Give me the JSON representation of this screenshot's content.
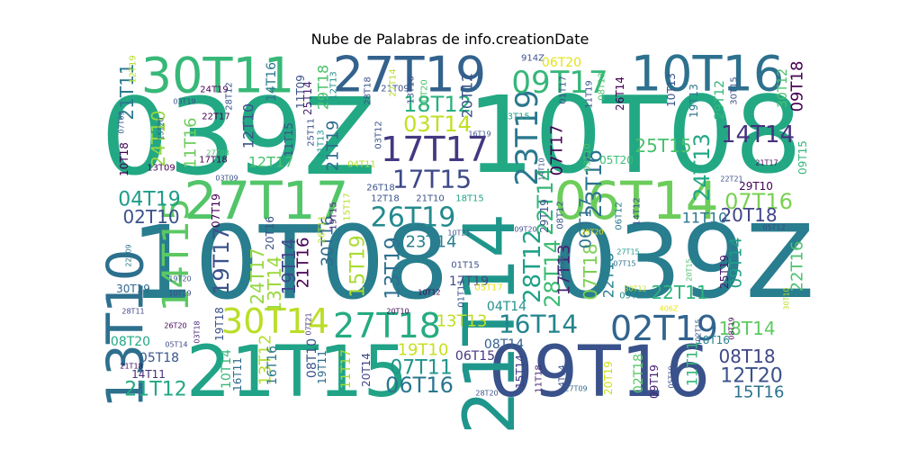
{
  "chart_data": {
    "type": "wordcloud",
    "title": "Nube de Palabras de info.creationDate",
    "words": [
      {
        "text": "039Z",
        "weight": 100,
        "color": "#23a884"
      },
      {
        "text": "10T08",
        "weight": 100,
        "color": "#23a884"
      },
      {
        "text": "10T08",
        "weight": 96,
        "color": "#287d8e"
      },
      {
        "text": "039Z",
        "weight": 96,
        "color": "#287d8e"
      },
      {
        "text": "21T15",
        "weight": 62,
        "color": "#20a386"
      },
      {
        "text": "09T16",
        "weight": 62,
        "color": "#3a528b"
      },
      {
        "text": "21T14",
        "weight": 58,
        "color": "#1f968b"
      },
      {
        "text": "13T10",
        "weight": 44,
        "color": "#2d708e"
      },
      {
        "text": "27T17",
        "weight": 44,
        "color": "#52c569"
      },
      {
        "text": "06T14",
        "weight": 44,
        "color": "#6ccd5a"
      },
      {
        "text": "30T11",
        "weight": 40,
        "color": "#37b878"
      },
      {
        "text": "27T19",
        "weight": 40,
        "color": "#33628d"
      },
      {
        "text": "10T16",
        "weight": 40,
        "color": "#2d718e"
      },
      {
        "text": "27T18",
        "weight": 30,
        "color": "#25ab82"
      },
      {
        "text": "30T14",
        "weight": 30,
        "color": "#bade28"
      },
      {
        "text": "02T19",
        "weight": 30,
        "color": "#32648e"
      },
      {
        "text": "16T14",
        "weight": 26,
        "color": "#25848e"
      },
      {
        "text": "17T17",
        "weight": 28,
        "color": "#453781"
      },
      {
        "text": "14T15",
        "weight": 28,
        "color": "#5cc863"
      },
      {
        "text": "23T19",
        "weight": 24,
        "color": "#2a788e"
      },
      {
        "text": "26T19",
        "weight": 24,
        "color": "#238a8d"
      },
      {
        "text": "17T15",
        "weight": 22,
        "color": "#3e4989"
      },
      {
        "text": "09T17",
        "weight": 24,
        "color": "#35b779"
      },
      {
        "text": "03T14",
        "weight": 20,
        "color": "#c2df23"
      },
      {
        "text": "18T12",
        "weight": 20,
        "color": "#2ab07f"
      },
      {
        "text": "22T14",
        "weight": 20,
        "color": "#35b779"
      },
      {
        "text": "23T16",
        "weight": 20,
        "color": "#2c728e"
      },
      {
        "text": "24T13",
        "weight": 18,
        "color": "#22a785"
      },
      {
        "text": "14T14",
        "weight": 18,
        "color": "#46327e"
      },
      {
        "text": "07T16",
        "weight": 18,
        "color": "#7ad151"
      },
      {
        "text": "20T18",
        "weight": 16,
        "color": "#414487"
      },
      {
        "text": "04T19",
        "weight": 18,
        "color": "#1e9c89"
      },
      {
        "text": "02T10",
        "weight": 18,
        "color": "#3b528b"
      },
      {
        "text": "21T12",
        "weight": 18,
        "color": "#22a884"
      },
      {
        "text": "06T16",
        "weight": 18,
        "color": "#2a768e"
      },
      {
        "text": "07T11",
        "weight": 18,
        "color": "#1f958b"
      },
      {
        "text": "19T10",
        "weight": 16,
        "color": "#c8e020"
      },
      {
        "text": "23T14",
        "weight": 16,
        "color": "#27808e"
      },
      {
        "text": "13T19",
        "weight": 18,
        "color": "#2d708e"
      },
      {
        "text": "15T19",
        "weight": 18,
        "color": "#aadc32"
      },
      {
        "text": "19T17",
        "weight": 18,
        "color": "#3b528b"
      },
      {
        "text": "21T16",
        "weight": 14,
        "color": "#440154"
      },
      {
        "text": "19T14",
        "weight": 14,
        "color": "#3e4a89"
      },
      {
        "text": "24T17",
        "weight": 14,
        "color": "#95d840"
      },
      {
        "text": "13T14",
        "weight": 16,
        "color": "#9bd93c"
      },
      {
        "text": "30T16",
        "weight": 14,
        "color": "#31688e"
      },
      {
        "text": "21T19",
        "weight": 14,
        "color": "#2e6d8e"
      },
      {
        "text": "28T12",
        "weight": 18,
        "color": "#1fa187"
      },
      {
        "text": "28T14",
        "weight": 18,
        "color": "#3cbc74"
      },
      {
        "text": "17T13",
        "weight": 16,
        "color": "#481f70"
      },
      {
        "text": "07T18",
        "weight": 16,
        "color": "#7ad151"
      },
      {
        "text": "22T18",
        "weight": 14,
        "color": "#277f8e"
      },
      {
        "text": "22T11",
        "weight": 16,
        "color": "#2fb47c"
      },
      {
        "text": "09T14",
        "weight": 16,
        "color": "#1f9e89"
      },
      {
        "text": "18T14",
        "weight": 16,
        "color": "#5ec962"
      },
      {
        "text": "08T18",
        "weight": 16,
        "color": "#3f4788"
      },
      {
        "text": "12T20",
        "weight": 16,
        "color": "#3b528b"
      },
      {
        "text": "15T16",
        "weight": 14,
        "color": "#2c738e"
      },
      {
        "text": "22T16",
        "weight": 14,
        "color": "#4ac16d"
      },
      {
        "text": "13T13",
        "weight": 14,
        "color": "#bddf26"
      },
      {
        "text": "08T14",
        "weight": 12,
        "color": "#34608d"
      },
      {
        "text": "06T15",
        "weight": 12,
        "color": "#453581"
      },
      {
        "text": "04T14",
        "weight": 12,
        "color": "#21908d"
      },
      {
        "text": "05T18",
        "weight": 12,
        "color": "#3a548c"
      },
      {
        "text": "14T11",
        "weight": 10,
        "color": "#472d7b"
      },
      {
        "text": "21T18",
        "weight": 8,
        "color": "#440154"
      },
      {
        "text": "30T19",
        "weight": 10,
        "color": "#31688e"
      },
      {
        "text": "19T20",
        "weight": 8,
        "color": "#39568c"
      },
      {
        "text": "10T19",
        "weight": 8,
        "color": "#3e4989"
      },
      {
        "text": "28T11",
        "weight": 8,
        "color": "#414487"
      },
      {
        "text": "22T09",
        "weight": 8,
        "color": "#2a788e"
      },
      {
        "text": "08T20",
        "weight": 12,
        "color": "#22a884"
      },
      {
        "text": "26T20",
        "weight": 8,
        "color": "#440154"
      },
      {
        "text": "05T14",
        "weight": 8,
        "color": "#3e4a89"
      },
      {
        "text": "03T18",
        "weight": 8,
        "color": "#482576"
      },
      {
        "text": "19T18",
        "weight": 10,
        "color": "#3b528b"
      },
      {
        "text": "10T14",
        "weight": 12,
        "color": "#35b779"
      },
      {
        "text": "16T11",
        "weight": 10,
        "color": "#2f6c8e"
      },
      {
        "text": "13T12",
        "weight": 14,
        "color": "#b5de2b"
      },
      {
        "text": "16T16",
        "weight": 12,
        "color": "#2a788e"
      },
      {
        "text": "08T10",
        "weight": 12,
        "color": "#3a548c"
      },
      {
        "text": "19T11",
        "weight": 10,
        "color": "#2f6c8e"
      },
      {
        "text": "11T17",
        "weight": 12,
        "color": "#a8db34"
      },
      {
        "text": "20T14",
        "weight": 10,
        "color": "#3f4788"
      },
      {
        "text": "20T10",
        "weight": 8,
        "color": "#440154"
      },
      {
        "text": "07T21",
        "weight": 8,
        "color": "#46327e"
      },
      {
        "text": "15T14",
        "weight": 10,
        "color": "#433e85"
      },
      {
        "text": "28T20",
        "weight": 8,
        "color": "#3b528b"
      },
      {
        "text": "11T18",
        "weight": 8,
        "color": "#482878"
      },
      {
        "text": "24T14",
        "weight": 8,
        "color": "#3b528b"
      },
      {
        "text": "27T09",
        "weight": 8,
        "color": "#31688e"
      },
      {
        "text": "20T19",
        "weight": 12,
        "color": "#d0e11c"
      },
      {
        "text": "02T18",
        "weight": 12,
        "color": "#56c667"
      },
      {
        "text": "09T19",
        "weight": 10,
        "color": "#482173"
      },
      {
        "text": "05T19",
        "weight": 8,
        "color": "#3b528b"
      },
      {
        "text": "11T11",
        "weight": 14,
        "color": "#35b779"
      },
      {
        "text": "18T16",
        "weight": 10,
        "color": "#26828e"
      },
      {
        "text": "25T19",
        "weight": 10,
        "color": "#481a6c"
      },
      {
        "text": "20T15",
        "weight": 8,
        "color": "#4ac16d"
      },
      {
        "text": "30T10",
        "weight": 8,
        "color": "#b8de29"
      },
      {
        "text": "406Z",
        "weight": 7,
        "color": "#e7e419"
      },
      {
        "text": "02T15",
        "weight": 8,
        "color": "#3b528b"
      },
      {
        "text": "08T19",
        "weight": 8,
        "color": "#440154"
      },
      {
        "text": "30T12",
        "weight": 8,
        "color": "#c2df23"
      },
      {
        "text": "09T12",
        "weight": 8,
        "color": "#238a8d"
      },
      {
        "text": "07T15",
        "weight": 8,
        "color": "#2d708e"
      },
      {
        "text": "07T19",
        "weight": 12,
        "color": "#440154"
      },
      {
        "text": "06T17",
        "weight": 14,
        "color": "#2c728e"
      },
      {
        "text": "11T10",
        "weight": 10,
        "color": "#2a788e"
      },
      {
        "text": "29T10",
        "weight": 10,
        "color": "#440154"
      },
      {
        "text": "22T21",
        "weight": 7,
        "color": "#3b528b"
      },
      {
        "text": "21T17",
        "weight": 7,
        "color": "#440154"
      },
      {
        "text": "09T15",
        "weight": 8,
        "color": "#35b779"
      },
      {
        "text": "14T12",
        "weight": 8,
        "color": "#3b528b"
      },
      {
        "text": "06T12",
        "weight": 8,
        "color": "#2a788e"
      },
      {
        "text": "05T12",
        "weight": 7,
        "color": "#3e4989"
      },
      {
        "text": "29T20",
        "weight": 7,
        "color": "#e2e418"
      },
      {
        "text": "27T15",
        "weight": 7,
        "color": "#1f968b"
      },
      {
        "text": "09T20",
        "weight": 7,
        "color": "#3b528b"
      },
      {
        "text": "03T20",
        "weight": 7,
        "color": "#3b528b"
      },
      {
        "text": "10T21",
        "weight": 7,
        "color": "#3b528b"
      },
      {
        "text": "01T15",
        "weight": 8,
        "color": "#3b528b"
      },
      {
        "text": "17T19",
        "weight": 10,
        "color": "#3e4989"
      },
      {
        "text": "05T17",
        "weight": 8,
        "color": "#e2e418"
      },
      {
        "text": "10T12",
        "weight": 7,
        "color": "#440154"
      },
      {
        "text": "01T11",
        "weight": 8,
        "color": "#3b528b"
      },
      {
        "text": "29T19",
        "weight": 10,
        "color": "#3b528b"
      },
      {
        "text": "08T12",
        "weight": 8,
        "color": "#3b528b"
      },
      {
        "text": "21T10",
        "weight": 8,
        "color": "#3b528b"
      },
      {
        "text": "18T15",
        "weight": 8,
        "color": "#20a386"
      },
      {
        "text": "26T18",
        "weight": 8,
        "color": "#3b528b"
      },
      {
        "text": "12T18",
        "weight": 8,
        "color": "#3b528b"
      },
      {
        "text": "15T17",
        "weight": 8,
        "color": "#b5de2b"
      },
      {
        "text": "19T15",
        "weight": 7,
        "color": "#482878"
      },
      {
        "text": "26T11",
        "weight": 7,
        "color": "#b5de2b"
      },
      {
        "text": "20T16",
        "weight": 10,
        "color": "#3b528b"
      },
      {
        "text": "12T17",
        "weight": 12,
        "color": "#4ac16d"
      },
      {
        "text": "03T09",
        "weight": 7,
        "color": "#3b528b"
      },
      {
        "text": "17T18",
        "weight": 8,
        "color": "#440154"
      },
      {
        "text": "27T08",
        "weight": 7,
        "color": "#4ac16d"
      },
      {
        "text": "10T18",
        "weight": 8,
        "color": "#440154"
      },
      {
        "text": "13T09",
        "weight": 8,
        "color": "#440154"
      },
      {
        "text": "24T10",
        "weight": 14,
        "color": "#95d840"
      },
      {
        "text": "11T16",
        "weight": 14,
        "color": "#6ccd5a"
      },
      {
        "text": "15T20",
        "weight": 7,
        "color": "#3b528b"
      },
      {
        "text": "07T09",
        "weight": 7,
        "color": "#3b528b"
      },
      {
        "text": "21T11",
        "weight": 16,
        "color": "#2a788e"
      },
      {
        "text": "12T19",
        "weight": 8,
        "color": "#b5de2b"
      },
      {
        "text": "03T19",
        "weight": 7,
        "color": "#3b528b"
      },
      {
        "text": "22T17",
        "weight": 7,
        "color": "#440154"
      },
      {
        "text": "24T19",
        "weight": 8,
        "color": "#440154"
      },
      {
        "text": "28T12",
        "weight": 7,
        "color": "#3b528b"
      },
      {
        "text": "12T10",
        "weight": 7,
        "color": "#3b528b"
      },
      {
        "text": "14T16",
        "weight": 14,
        "color": "#2a788e"
      },
      {
        "text": "11T09",
        "weight": 10,
        "color": "#3b528b"
      },
      {
        "text": "25T14",
        "weight": 8,
        "color": "#482878"
      },
      {
        "text": "29T18",
        "weight": 8,
        "color": "#4ac16d"
      },
      {
        "text": "12T13",
        "weight": 14,
        "color": "#21908d"
      },
      {
        "text": "11T15",
        "weight": 7,
        "color": "#3b528b"
      },
      {
        "text": "25T11",
        "weight": 10,
        "color": "#3b528b"
      },
      {
        "text": "21T13",
        "weight": 8,
        "color": "#1f968b"
      },
      {
        "text": "28T18",
        "weight": 8,
        "color": "#3b528b"
      },
      {
        "text": "04T11",
        "weight": 7,
        "color": "#b5de2b"
      },
      {
        "text": "03T12",
        "weight": 7,
        "color": "#3b528b"
      },
      {
        "text": "21T09",
        "weight": 7,
        "color": "#3b528b"
      },
      {
        "text": "27T14",
        "weight": 7,
        "color": "#b5de2b"
      },
      {
        "text": "13T16",
        "weight": 7,
        "color": "#3b528b"
      },
      {
        "text": "10T20",
        "weight": 7,
        "color": "#4ac16d"
      },
      {
        "text": "20T12",
        "weight": 8,
        "color": "#3b528b"
      },
      {
        "text": "16T19",
        "weight": 10,
        "color": "#3b528b"
      },
      {
        "text": "914Z",
        "weight": 6,
        "color": "#3b528b"
      },
      {
        "text": "06T20",
        "weight": 8,
        "color": "#e2e418"
      },
      {
        "text": "01T17",
        "weight": 10,
        "color": "#3b528b"
      },
      {
        "text": "11T19",
        "weight": 7,
        "color": "#3b528b"
      },
      {
        "text": "13T15",
        "weight": 7,
        "color": "#20a386"
      },
      {
        "text": "08T13",
        "weight": 7,
        "color": "#4ac16d"
      },
      {
        "text": "26T14",
        "weight": 8,
        "color": "#440154"
      },
      {
        "text": "10T13",
        "weight": 8,
        "color": "#3b528b"
      },
      {
        "text": "07T17",
        "weight": 8,
        "color": "#440154"
      },
      {
        "text": "19T13",
        "weight": 12,
        "color": "#2a788e"
      },
      {
        "text": "29T12",
        "weight": 8,
        "color": "#35b779"
      },
      {
        "text": "30T15",
        "weight": 8,
        "color": "#3b528b"
      },
      {
        "text": "30T12",
        "weight": 7,
        "color": "#4ac16d"
      },
      {
        "text": "09T18",
        "weight": 10,
        "color": "#440154"
      },
      {
        "text": "25T15",
        "weight": 14,
        "color": "#4ac16d"
      },
      {
        "text": "05T20",
        "weight": 12,
        "color": "#3cbc74"
      },
      {
        "text": "14T10",
        "weight": 8,
        "color": "#3b528b"
      },
      {
        "text": "03T10",
        "weight": 7,
        "color": "#4ac16d"
      },
      {
        "text": "29T14",
        "weight": 7,
        "color": "#3b528b"
      }
    ]
  }
}
